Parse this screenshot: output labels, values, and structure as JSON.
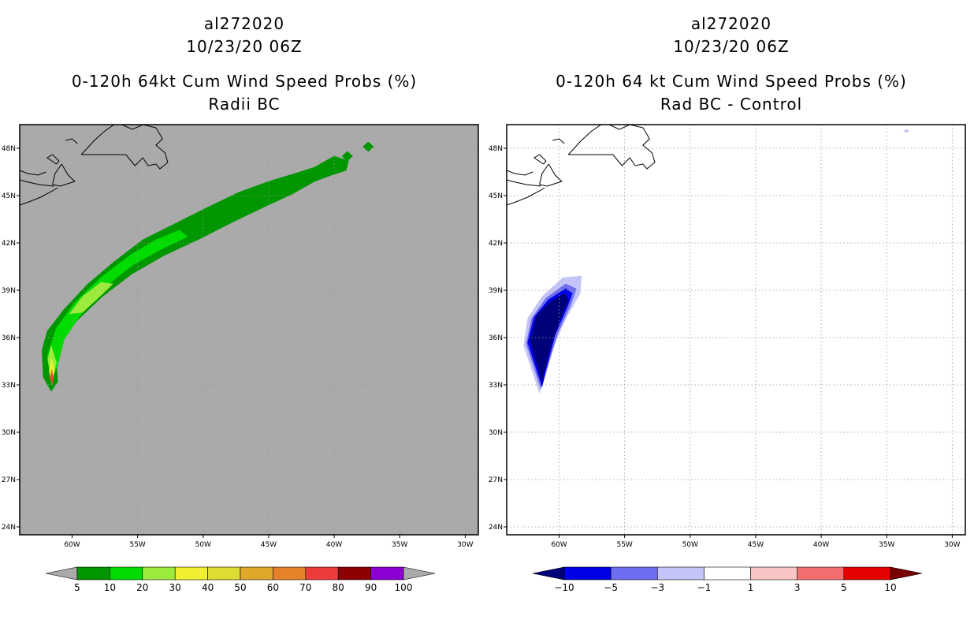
{
  "panels": [
    {
      "id": "left",
      "storm_id": "al272020",
      "datetime": "10/23/20 06Z",
      "title": "0-120h 64kt Cum Wind Speed Probs (%)",
      "subtitle": "Radii BC",
      "background": "#aaaaaa",
      "colorbar": {
        "levels": [
          "5",
          "10",
          "20",
          "30",
          "40",
          "50",
          "60",
          "70",
          "80",
          "90",
          "100"
        ],
        "colors": [
          "#009600",
          "#00dc00",
          "#9bea3c",
          "#f0f030",
          "#dcdc32",
          "#e0a82a",
          "#e8822a",
          "#ee3c3c",
          "#8c0000",
          "#8c00d6"
        ],
        "under_color": "#aaaaaa",
        "over_color": "#aaaaaa"
      }
    },
    {
      "id": "right",
      "storm_id": "al272020",
      "datetime": "10/23/20 06Z",
      "title": "0-120h 64 kt Cum Wind Speed Probs (%)",
      "subtitle": "Rad BC - Control",
      "background": "#ffffff",
      "colorbar": {
        "levels": [
          "−10",
          "−5",
          "−3",
          "−1",
          "1",
          "3",
          "5",
          "10"
        ],
        "colors": [
          "#0000e6",
          "#6e6ef0",
          "#c4c4f8",
          "#ffffff",
          "#f8c4c4",
          "#f06e6e",
          "#e60000"
        ],
        "under_color": "#000078",
        "over_color": "#780000"
      }
    }
  ],
  "chart_data": [
    {
      "type": "heatmap",
      "panel": "left",
      "title": "0-120h 64kt Cum Wind Speed Probs (%)",
      "subtitle": "Radii BC",
      "xlabel": "",
      "ylabel": "",
      "xlim": [
        -64,
        -29
      ],
      "ylim": [
        23.5,
        49.5
      ],
      "xticks": [
        -60,
        -55,
        -50,
        -45,
        -40,
        -35,
        -30
      ],
      "xtick_labels": [
        "60W",
        "55W",
        "50W",
        "45W",
        "40W",
        "35W",
        "30W"
      ],
      "yticks": [
        24,
        27,
        30,
        33,
        36,
        39,
        42,
        45,
        48
      ],
      "ytick_labels": [
        "24N",
        "27N",
        "30N",
        "33N",
        "36N",
        "39N",
        "42N",
        "45N",
        "48N"
      ],
      "grid": true,
      "contours": [
        {
          "level": 5,
          "color": "#009600",
          "polygon": [
            [
              -61.6,
              32.6
            ],
            [
              -62.2,
              33.5
            ],
            [
              -62.3,
              35.2
            ],
            [
              -61.9,
              36.4
            ],
            [
              -60.6,
              37.8
            ],
            [
              -58.8,
              39.4
            ],
            [
              -56.8,
              40.8
            ],
            [
              -54.6,
              42.2
            ],
            [
              -52.2,
              43.2
            ],
            [
              -49.8,
              44.2
            ],
            [
              -47.3,
              45.2
            ],
            [
              -45,
              45.9
            ],
            [
              -43,
              46.4
            ],
            [
              -41.5,
              46.8
            ],
            [
              -40,
              47.5
            ],
            [
              -38.9,
              47.2
            ],
            [
              -39.1,
              46.6
            ],
            [
              -40.2,
              46.3
            ],
            [
              -41.5,
              45.9
            ],
            [
              -43.2,
              45.1
            ],
            [
              -45.3,
              44.3
            ],
            [
              -47.8,
              43.3
            ],
            [
              -50.4,
              42.2
            ],
            [
              -53,
              41.2
            ],
            [
              -55.5,
              40
            ],
            [
              -57.7,
              38.6
            ],
            [
              -59.6,
              37.1
            ],
            [
              -60.9,
              35.9
            ],
            [
              -61.2,
              34.4
            ],
            [
              -61.1,
              33.2
            ]
          ]
        },
        {
          "level": 5,
          "color": "#009600",
          "polygon": [
            [
              -39.4,
              47.5
            ],
            [
              -39,
              47.8
            ],
            [
              -38.6,
              47.5
            ],
            [
              -39,
              47.2
            ]
          ]
        },
        {
          "level": 5,
          "color": "#009600",
          "polygon": [
            [
              -37.8,
              48.1
            ],
            [
              -37.4,
              48.4
            ],
            [
              -37,
              48.1
            ],
            [
              -37.4,
              47.8
            ]
          ]
        },
        {
          "level": 10,
          "color": "#00dc00",
          "polygon": [
            [
              -61.6,
              33.2
            ],
            [
              -61.9,
              34.8
            ],
            [
              -61.2,
              36.6
            ],
            [
              -59.8,
              38.2
            ],
            [
              -57.8,
              39.8
            ],
            [
              -55.6,
              41.2
            ],
            [
              -53.6,
              42.2
            ],
            [
              -51.8,
              42.8
            ],
            [
              -51.2,
              42.4
            ],
            [
              -53.2,
              41.6
            ],
            [
              -55.4,
              40.6
            ],
            [
              -57.5,
              39.2
            ],
            [
              -59.3,
              37.5
            ],
            [
              -60.6,
              35.9
            ],
            [
              -61.1,
              34.3
            ]
          ]
        },
        {
          "level": 20,
          "color": "#9bea3c",
          "polygon": [
            [
              -60.2,
              37.5
            ],
            [
              -59.2,
              38.6
            ],
            [
              -57.8,
              39.5
            ],
            [
              -56.9,
              39.4
            ],
            [
              -57.9,
              38.6
            ],
            [
              -59.2,
              37.6
            ]
          ]
        },
        {
          "level": 20,
          "color": "#9bea3c",
          "polygon": [
            [
              -61.55,
              33.3
            ],
            [
              -61.85,
              34.6
            ],
            [
              -61.6,
              35.5
            ],
            [
              -61.2,
              34.4
            ]
          ]
        },
        {
          "level": 30,
          "color": "#f0f030",
          "polygon": [
            [
              -61.55,
              33.1
            ],
            [
              -61.75,
              33.9
            ],
            [
              -61.55,
              34.6
            ],
            [
              -61.35,
              33.9
            ]
          ]
        },
        {
          "level": 60,
          "color": "#e8822a",
          "polygon": [
            [
              -61.55,
              33
            ],
            [
              -61.68,
              33.5
            ],
            [
              -61.55,
              34
            ],
            [
              -61.42,
              33.5
            ]
          ]
        },
        {
          "level": 70,
          "color": "#ee3c3c",
          "polygon": [
            [
              -61.55,
              33.1
            ],
            [
              -61.63,
              33.4
            ],
            [
              -61.55,
              33.7
            ],
            [
              -61.47,
              33.4
            ]
          ]
        }
      ]
    },
    {
      "type": "heatmap",
      "panel": "right",
      "title": "0-120h 64 kt Cum Wind Speed Probs (%)",
      "subtitle": "Rad BC - Control",
      "xlabel": "",
      "ylabel": "",
      "xlim": [
        -64,
        -29
      ],
      "ylim": [
        23.5,
        49.5
      ],
      "xticks": [
        -60,
        -55,
        -50,
        -45,
        -40,
        -35,
        -30
      ],
      "xtick_labels": [
        "60W",
        "55W",
        "50W",
        "45W",
        "40W",
        "35W",
        "30W"
      ],
      "yticks": [
        24,
        27,
        30,
        33,
        36,
        39,
        42,
        45,
        48
      ],
      "ytick_labels": [
        "24N",
        "27N",
        "30N",
        "33N",
        "36N",
        "39N",
        "42N",
        "45N",
        "48N"
      ],
      "grid": true,
      "contours": [
        {
          "level": -1,
          "color": "#c4c4f8",
          "polygon": [
            [
              -61.5,
              32.5
            ],
            [
              -62.7,
              35.5
            ],
            [
              -62.4,
              37.2
            ],
            [
              -61.3,
              38.6
            ],
            [
              -59.7,
              39.8
            ],
            [
              -58.3,
              39.9
            ],
            [
              -58.4,
              38.8
            ],
            [
              -59.5,
              37.2
            ],
            [
              -60.5,
              35.3
            ],
            [
              -61.1,
              33.4
            ]
          ]
        },
        {
          "level": -3,
          "color": "#6e6ef0",
          "polygon": [
            [
              -61.4,
              32.8
            ],
            [
              -62.5,
              35.6
            ],
            [
              -62.1,
              37.2
            ],
            [
              -61,
              38.5
            ],
            [
              -59.5,
              39.4
            ],
            [
              -58.7,
              39.1
            ],
            [
              -59.1,
              38.1
            ],
            [
              -60.1,
              36.3
            ],
            [
              -60.9,
              34.1
            ]
          ]
        },
        {
          "level": -5,
          "color": "#0000e6",
          "polygon": [
            [
              -61.3,
              32.9
            ],
            [
              -62.4,
              35.7
            ],
            [
              -61.9,
              37.3
            ],
            [
              -60.8,
              38.4
            ],
            [
              -59.5,
              39.1
            ],
            [
              -59,
              38.8
            ],
            [
              -59.4,
              37.9
            ],
            [
              -60.3,
              36.2
            ],
            [
              -61,
              34
            ]
          ]
        },
        {
          "level": -10,
          "color": "#000078",
          "polygon": [
            [
              -61.3,
              33.2
            ],
            [
              -62.2,
              35.8
            ],
            [
              -61.7,
              37.4
            ],
            [
              -60.6,
              38.3
            ],
            [
              -59.6,
              38.8
            ],
            [
              -59.3,
              38.4
            ],
            [
              -59.8,
              37.4
            ],
            [
              -60.6,
              35.6
            ],
            [
              -61.1,
              34
            ]
          ]
        },
        {
          "level": -1,
          "color": "#c4c4f8",
          "polygon": [
            [
              -33.7,
              49.1
            ],
            [
              -33.5,
              49.2
            ],
            [
              -33.3,
              49.1
            ],
            [
              -33.5,
              49
            ]
          ]
        }
      ]
    }
  ]
}
